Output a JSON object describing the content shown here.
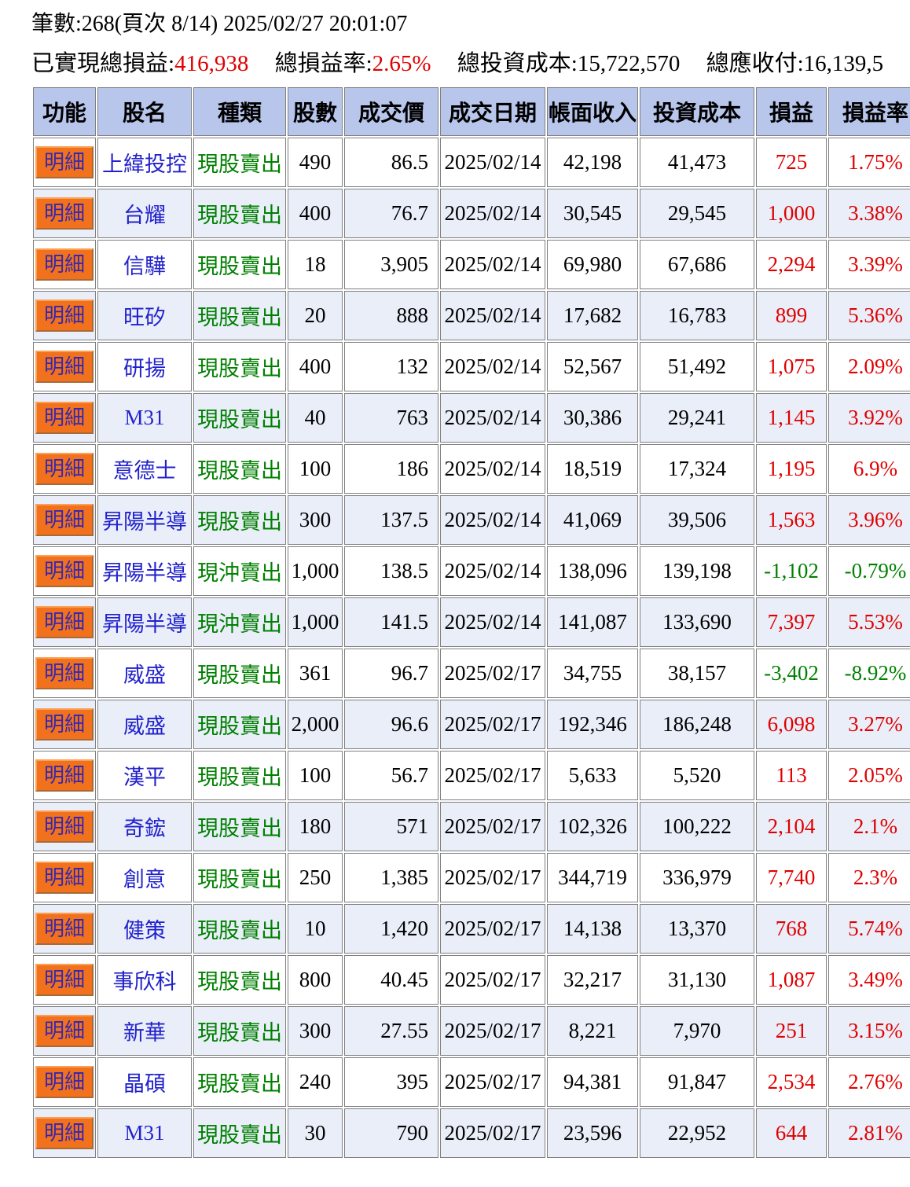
{
  "header": {
    "page_info": "筆數:268(頁次 8/14) 2025/02/27 20:01:07",
    "summary": [
      {
        "label": "已實現總損益:",
        "value": "416,938"
      },
      {
        "label": "總損益率:",
        "value": "2.65%"
      },
      {
        "label": "總投資成本:",
        "value": "15,722,570"
      },
      {
        "label": "總應收付:",
        "value": "16,139,5"
      }
    ]
  },
  "colors": {
    "accent_orange": "#f2711c",
    "profit_red": "#e00000",
    "loss_green": "#008000",
    "stock_blue": "#2222cc",
    "header_bg": "#b8c6ec",
    "stripe_bg": "#e9eef9"
  },
  "table": {
    "detail_button_label": "明細",
    "columns": [
      "功能",
      "股名",
      "種類",
      "股數",
      "成交價",
      "成交日期",
      "帳面收入",
      "投資成本",
      "損益",
      "損益率"
    ],
    "rows": [
      {
        "name": "上緯投控",
        "type": "現股賣出",
        "qty": "490",
        "price": "86.5",
        "date": "2025/02/14",
        "revenue": "42,198",
        "cost": "41,473",
        "pl": "725",
        "pl_pct": "1.75%"
      },
      {
        "name": "台耀",
        "type": "現股賣出",
        "qty": "400",
        "price": "76.7",
        "date": "2025/02/14",
        "revenue": "30,545",
        "cost": "29,545",
        "pl": "1,000",
        "pl_pct": "3.38%"
      },
      {
        "name": "信驊",
        "type": "現股賣出",
        "qty": "18",
        "price": "3,905",
        "date": "2025/02/14",
        "revenue": "69,980",
        "cost": "67,686",
        "pl": "2,294",
        "pl_pct": "3.39%"
      },
      {
        "name": "旺矽",
        "type": "現股賣出",
        "qty": "20",
        "price": "888",
        "date": "2025/02/14",
        "revenue": "17,682",
        "cost": "16,783",
        "pl": "899",
        "pl_pct": "5.36%"
      },
      {
        "name": "研揚",
        "type": "現股賣出",
        "qty": "400",
        "price": "132",
        "date": "2025/02/14",
        "revenue": "52,567",
        "cost": "51,492",
        "pl": "1,075",
        "pl_pct": "2.09%"
      },
      {
        "name": "M31",
        "type": "現股賣出",
        "qty": "40",
        "price": "763",
        "date": "2025/02/14",
        "revenue": "30,386",
        "cost": "29,241",
        "pl": "1,145",
        "pl_pct": "3.92%"
      },
      {
        "name": "意德士",
        "type": "現股賣出",
        "qty": "100",
        "price": "186",
        "date": "2025/02/14",
        "revenue": "18,519",
        "cost": "17,324",
        "pl": "1,195",
        "pl_pct": "6.9%"
      },
      {
        "name": "昇陽半導",
        "type": "現股賣出",
        "qty": "300",
        "price": "137.5",
        "date": "2025/02/14",
        "revenue": "41,069",
        "cost": "39,506",
        "pl": "1,563",
        "pl_pct": "3.96%"
      },
      {
        "name": "昇陽半導",
        "type": "現沖賣出",
        "qty": "1,000",
        "price": "138.5",
        "date": "2025/02/14",
        "revenue": "138,096",
        "cost": "139,198",
        "pl": "-1,102",
        "pl_pct": "-0.79%"
      },
      {
        "name": "昇陽半導",
        "type": "現沖賣出",
        "qty": "1,000",
        "price": "141.5",
        "date": "2025/02/14",
        "revenue": "141,087",
        "cost": "133,690",
        "pl": "7,397",
        "pl_pct": "5.53%"
      },
      {
        "name": "威盛",
        "type": "現股賣出",
        "qty": "361",
        "price": "96.7",
        "date": "2025/02/17",
        "revenue": "34,755",
        "cost": "38,157",
        "pl": "-3,402",
        "pl_pct": "-8.92%"
      },
      {
        "name": "威盛",
        "type": "現股賣出",
        "qty": "2,000",
        "price": "96.6",
        "date": "2025/02/17",
        "revenue": "192,346",
        "cost": "186,248",
        "pl": "6,098",
        "pl_pct": "3.27%"
      },
      {
        "name": "漢平",
        "type": "現股賣出",
        "qty": "100",
        "price": "56.7",
        "date": "2025/02/17",
        "revenue": "5,633",
        "cost": "5,520",
        "pl": "113",
        "pl_pct": "2.05%"
      },
      {
        "name": "奇鋐",
        "type": "現股賣出",
        "qty": "180",
        "price": "571",
        "date": "2025/02/17",
        "revenue": "102,326",
        "cost": "100,222",
        "pl": "2,104",
        "pl_pct": "2.1%"
      },
      {
        "name": "創意",
        "type": "現股賣出",
        "qty": "250",
        "price": "1,385",
        "date": "2025/02/17",
        "revenue": "344,719",
        "cost": "336,979",
        "pl": "7,740",
        "pl_pct": "2.3%"
      },
      {
        "name": "健策",
        "type": "現股賣出",
        "qty": "10",
        "price": "1,420",
        "date": "2025/02/17",
        "revenue": "14,138",
        "cost": "13,370",
        "pl": "768",
        "pl_pct": "5.74%"
      },
      {
        "name": "事欣科",
        "type": "現股賣出",
        "qty": "800",
        "price": "40.45",
        "date": "2025/02/17",
        "revenue": "32,217",
        "cost": "31,130",
        "pl": "1,087",
        "pl_pct": "3.49%"
      },
      {
        "name": "新華",
        "type": "現股賣出",
        "qty": "300",
        "price": "27.55",
        "date": "2025/02/17",
        "revenue": "8,221",
        "cost": "7,970",
        "pl": "251",
        "pl_pct": "3.15%"
      },
      {
        "name": "晶碩",
        "type": "現股賣出",
        "qty": "240",
        "price": "395",
        "date": "2025/02/17",
        "revenue": "94,381",
        "cost": "91,847",
        "pl": "2,534",
        "pl_pct": "2.76%"
      },
      {
        "name": "M31",
        "type": "現股賣出",
        "qty": "30",
        "price": "790",
        "date": "2025/02/17",
        "revenue": "23,596",
        "cost": "22,952",
        "pl": "644",
        "pl_pct": "2.81%"
      }
    ]
  }
}
